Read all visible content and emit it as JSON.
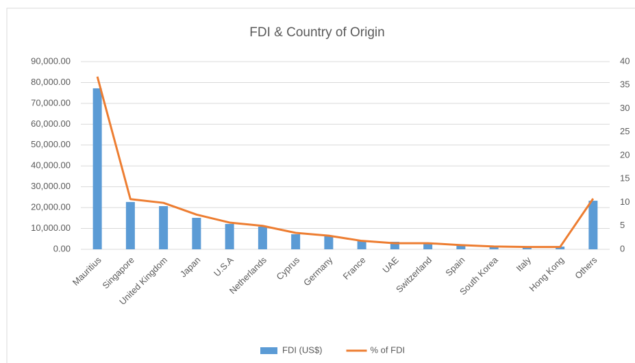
{
  "chart_data": {
    "type": "bar",
    "title": "FDI & Country of Origin",
    "categories": [
      "Mauritius",
      "Singapore",
      "United Kingdom",
      "Japan",
      "U.S.A",
      "Netherlands",
      "Cyprus",
      "Germany",
      "France",
      "UAE",
      "Switzerland",
      "Spain",
      "South Korea",
      "Italy",
      "Hong Kong",
      "Others"
    ],
    "series": [
      {
        "name": "FDI (US$)",
        "type": "bar",
        "color": "#5b9bd5",
        "values": [
          77200,
          22700,
          20700,
          15100,
          12150,
          10850,
          7230,
          6240,
          4270,
          3600,
          3300,
          2300,
          1640,
          1300,
          1300,
          23300
        ]
      },
      {
        "name": "% of FDI",
        "type": "line",
        "axis": "y2",
        "color": "#ed7d31",
        "values": [
          36.8,
          10.7,
          9.9,
          7.4,
          5.7,
          5.0,
          3.5,
          2.9,
          1.8,
          1.3,
          1.3,
          0.9,
          0.6,
          0.5,
          0.5,
          10.8
        ]
      }
    ],
    "ylim": [
      0,
      90000
    ],
    "yticks": [
      {
        "value": 0,
        "label": "0.00"
      },
      {
        "value": 10000,
        "label": "10,000.00"
      },
      {
        "value": 20000,
        "label": "20,000.00"
      },
      {
        "value": 30000,
        "label": "30,000.00"
      },
      {
        "value": 40000,
        "label": "40,000.00"
      },
      {
        "value": 50000,
        "label": "50,000.00"
      },
      {
        "value": 60000,
        "label": "60,000.00"
      },
      {
        "value": 70000,
        "label": "70,000.00"
      },
      {
        "value": 80000,
        "label": "80,000.00"
      },
      {
        "value": 90000,
        "label": "90,000.00"
      }
    ],
    "y2lim": [
      0,
      40
    ],
    "y2ticks": [
      0,
      5,
      10,
      15,
      20,
      25,
      30,
      35,
      40
    ],
    "grid": true,
    "legend": "bottom"
  }
}
